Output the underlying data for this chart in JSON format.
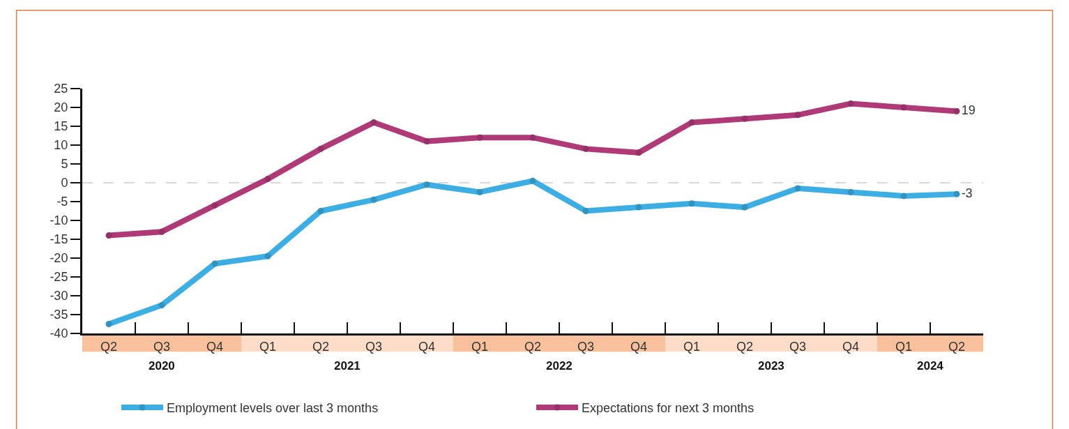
{
  "chart_data": {
    "type": "line",
    "categories": [
      "Q2",
      "Q3",
      "Q4",
      "Q1",
      "Q2",
      "Q3",
      "Q4",
      "Q1",
      "Q2",
      "Q3",
      "Q4",
      "Q1",
      "Q2",
      "Q3",
      "Q4",
      "Q1",
      "Q2"
    ],
    "series": [
      {
        "name": "Employment levels over last 3 months",
        "color": "#3daee3",
        "values": [
          -37.5,
          -32.5,
          -21.5,
          -19.5,
          -7.5,
          -4.5,
          -0.5,
          -2.5,
          0.5,
          -7.5,
          -6.5,
          -5.5,
          -6.5,
          -1.5,
          -2.5,
          -3.5,
          -3
        ],
        "value_labels": [
          null,
          null,
          null,
          null,
          null,
          null,
          null,
          null,
          null,
          null,
          null,
          null,
          null,
          null,
          null,
          null,
          "-3"
        ]
      },
      {
        "name": "Expectations for next 3 months",
        "color": "#b03a78",
        "values": [
          -14,
          -13,
          -6,
          1,
          9,
          16,
          11,
          12,
          12,
          9,
          8,
          16,
          17,
          18,
          21,
          20,
          19
        ],
        "value_labels": [
          null,
          null,
          null,
          null,
          null,
          null,
          null,
          null,
          null,
          null,
          null,
          null,
          null,
          null,
          null,
          null,
          "19"
        ]
      }
    ],
    "annotations": [
      "2020",
      "2021",
      "2022",
      "2023",
      "2024"
    ],
    "ylim": [
      -40,
      25
    ],
    "yticks": [
      -40,
      -35,
      -30,
      -25,
      -20,
      -15,
      -10,
      -5,
      0,
      5,
      10,
      15,
      20,
      25
    ],
    "ref_lines": [
      {
        "axis": "y",
        "value": 0,
        "color": "#d9d9d9",
        "line_style": "dashed"
      }
    ],
    "grid": false,
    "legend": "bottom",
    "marker": "circle",
    "line_style": "solid"
  }
}
